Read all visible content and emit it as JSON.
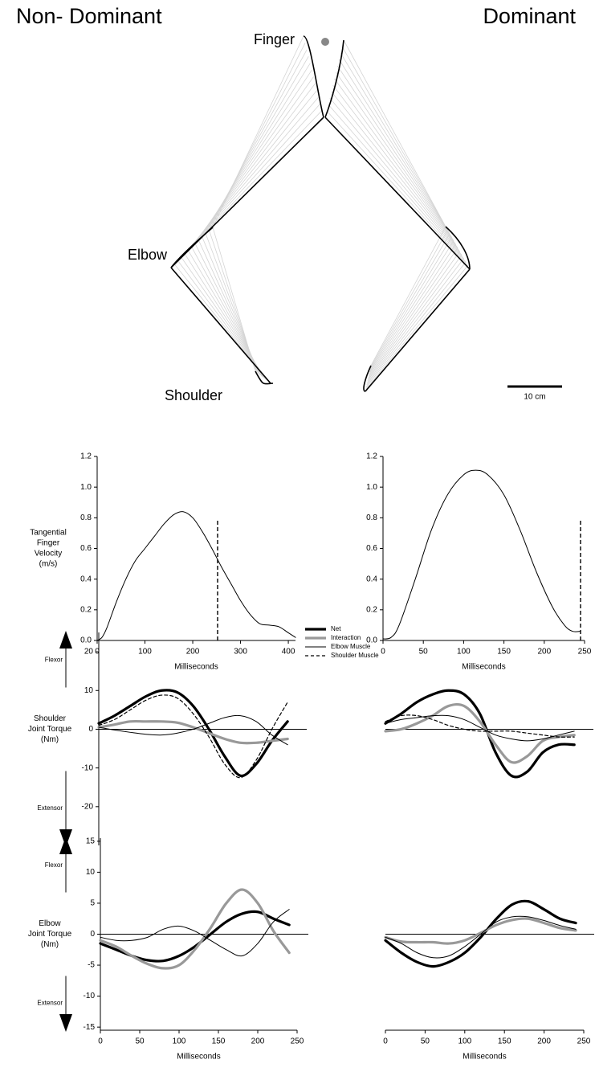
{
  "diagram": {
    "titles": [
      "Non- Dominant",
      "Dominant"
    ],
    "finger": "Finger",
    "elbow": "Elbow",
    "shoulder": "Shoulder",
    "scale_bar": "10 cm"
  },
  "chart_data": [
    {
      "type": "line",
      "ylabel": [
        "Tangential",
        "Finger",
        "Velocity",
        "(m/s)"
      ],
      "xlabel": "Milliseconds",
      "x": [
        0,
        10,
        20,
        40,
        60,
        80,
        100,
        120,
        140,
        160,
        180,
        200,
        220,
        240,
        260,
        280,
        300,
        320,
        340,
        360,
        380,
        400,
        415
      ],
      "series": [
        {
          "color": "#000000",
          "style": "thin",
          "values": [
            0,
            0.02,
            0.08,
            0.25,
            0.4,
            0.52,
            0.6,
            0.68,
            0.76,
            0.82,
            0.84,
            0.8,
            0.71,
            0.6,
            0.48,
            0.37,
            0.26,
            0.17,
            0.11,
            0.1,
            0.09,
            0.05,
            0.02
          ]
        }
      ],
      "xlim": [
        0,
        415
      ],
      "ylim": [
        0,
        1.2
      ],
      "xticks": [
        0,
        100,
        200,
        300,
        400
      ],
      "yticks": [
        {
          "value": 0,
          "label": "0.0"
        },
        0.2,
        0.4,
        0.6,
        0.8,
        {
          "value": 1,
          "label": "1.0"
        },
        1.2
      ],
      "marker_x": 252
    },
    {
      "type": "line",
      "xlabel": "Milliseconds",
      "x": [
        0,
        10,
        20,
        40,
        60,
        80,
        100,
        115,
        130,
        150,
        170,
        190,
        210,
        225,
        235,
        245
      ],
      "series": [
        {
          "color": "#000000",
          "style": "thin",
          "values": [
            0.01,
            0.02,
            0.1,
            0.4,
            0.72,
            0.95,
            1.08,
            1.11,
            1.08,
            0.95,
            0.72,
            0.45,
            0.22,
            0.1,
            0.06,
            0.06
          ]
        }
      ],
      "xlim": [
        0,
        250
      ],
      "ylim": [
        0,
        1.2
      ],
      "xticks": [
        0,
        50,
        100,
        150,
        200,
        250
      ],
      "yticks": [
        {
          "value": 0,
          "label": "0.0"
        },
        0.2,
        0.4,
        0.6,
        0.8,
        {
          "value": 1,
          "label": "1.0"
        },
        1.2
      ],
      "marker_x": 245
    },
    {
      "type": "line",
      "ylabel": [
        "Shoulder",
        "Joint Torque",
        "(Nm)"
      ],
      "annotations": [
        "Flexor",
        "Extensor"
      ],
      "legend": "top-right",
      "x": [
        0,
        20,
        40,
        60,
        80,
        100,
        120,
        140,
        160,
        180,
        200,
        220,
        240
      ],
      "series": [
        {
          "name": "Net",
          "color": "#000000",
          "style": "thick",
          "values": [
            1.5,
            3.5,
            6,
            8.5,
            10,
            9.5,
            6,
            0,
            -7,
            -12,
            -9,
            -3,
            2
          ]
        },
        {
          "name": "Interaction",
          "color": "#999999",
          "style": "thick",
          "values": [
            0.5,
            1.2,
            2,
            2,
            2,
            1.7,
            0.5,
            -1,
            -2.5,
            -3.5,
            -3.5,
            -3,
            -2.5
          ]
        },
        {
          "name": "Elbow Muscle",
          "color": "#000000",
          "style": "thin",
          "values": [
            0.5,
            -0.2,
            -0.8,
            -1.3,
            -1.5,
            -1,
            0,
            1.5,
            3,
            3.5,
            2,
            -1.5,
            -4
          ]
        },
        {
          "name": "Shoulder Muscle",
          "color": "#000000",
          "style": "dashed",
          "values": [
            1,
            2.5,
            5,
            7.5,
            8.8,
            8,
            4,
            -2,
            -9,
            -12.5,
            -8,
            0,
            7
          ]
        }
      ],
      "xlim": [
        0,
        250
      ],
      "ylim": [
        -30,
        25
      ],
      "yticks": [
        -20,
        -10,
        0,
        10,
        20
      ]
    },
    {
      "type": "line",
      "x": [
        0,
        20,
        40,
        60,
        80,
        100,
        120,
        140,
        160,
        180,
        200,
        220,
        240
      ],
      "series": [
        {
          "name": "Net",
          "color": "#000000",
          "style": "thick",
          "values": [
            1.5,
            4,
            7,
            9,
            10,
            9,
            4,
            -6,
            -12,
            -11,
            -6,
            -4,
            -4
          ]
        },
        {
          "name": "Interaction",
          "color": "#999999",
          "style": "thick",
          "values": [
            -0.5,
            0,
            1.5,
            3.5,
            6,
            6,
            2,
            -4,
            -8.5,
            -7,
            -3,
            -2,
            -1.5
          ]
        },
        {
          "name": "Elbow Muscle",
          "color": "#000000",
          "style": "thin",
          "values": [
            1.5,
            2.5,
            3,
            3.5,
            3.5,
            2.5,
            0.5,
            -1.5,
            -2.5,
            -3,
            -2.5,
            -1.5,
            -0.5
          ]
        },
        {
          "name": "Shoulder Muscle",
          "color": "#000000",
          "style": "dashed",
          "values": [
            2,
            3.5,
            3.5,
            2.5,
            1,
            0,
            -0.5,
            -0.5,
            -0.5,
            -1,
            -1.5,
            -2,
            -2
          ]
        }
      ],
      "xlim": [
        0,
        250
      ],
      "ylim": [
        -30,
        25
      ]
    },
    {
      "type": "line",
      "ylabel": [
        "Elbow",
        "Joint Torque",
        "(Nm)"
      ],
      "annotations": [
        "Flexor",
        "Extensor"
      ],
      "xlabel": "Milliseconds",
      "x": [
        0,
        20,
        40,
        60,
        80,
        100,
        120,
        140,
        160,
        180,
        200,
        220,
        240
      ],
      "series": [
        {
          "name": "Net",
          "color": "#000000",
          "style": "thick",
          "values": [
            -1.5,
            -2.5,
            -3.5,
            -4.2,
            -4.3,
            -3.5,
            -2,
            0,
            2,
            3.3,
            3.6,
            2.5,
            1.5
          ]
        },
        {
          "name": "Interaction",
          "color": "#999999",
          "style": "thick",
          "values": [
            -1,
            -2,
            -3.5,
            -4.8,
            -5.5,
            -5,
            -2.5,
            1,
            5,
            7.2,
            5,
            0.5,
            -3
          ]
        },
        {
          "name": "Elbow Muscle",
          "color": "#000000",
          "style": "thin",
          "values": [
            -0.5,
            -1,
            -1,
            -0.5,
            0.8,
            1.3,
            0.5,
            -1,
            -2.5,
            -3.5,
            -1.5,
            2,
            4
          ]
        }
      ],
      "xlim": [
        0,
        250
      ],
      "ylim": [
        -15.5,
        15.5
      ],
      "xticks": [
        0,
        50,
        100,
        150,
        200,
        250
      ],
      "yticks": [
        -15,
        -10,
        -5,
        0,
        5,
        10,
        15
      ]
    },
    {
      "type": "line",
      "xlabel": "Milliseconds",
      "x": [
        0,
        20,
        40,
        60,
        80,
        100,
        120,
        140,
        160,
        180,
        200,
        220,
        240
      ],
      "series": [
        {
          "name": "Net",
          "color": "#000000",
          "style": "thick",
          "values": [
            -1,
            -3,
            -4.5,
            -5.2,
            -4.5,
            -3,
            -0.5,
            2.5,
            4.8,
            5.3,
            4,
            2.5,
            1.8
          ]
        },
        {
          "name": "Interaction",
          "color": "#999999",
          "style": "thick",
          "values": [
            -0.5,
            -1.2,
            -1.3,
            -1.3,
            -1.5,
            -1,
            0.2,
            1.5,
            2.3,
            2.5,
            1.8,
            1,
            0.6
          ]
        },
        {
          "name": "Elbow Muscle",
          "color": "#000000",
          "style": "thin",
          "values": [
            -0.5,
            -1.5,
            -3,
            -3.8,
            -3.5,
            -2,
            0,
            2,
            2.8,
            2.8,
            2.2,
            1.4,
            0.8
          ]
        }
      ],
      "xlim": [
        0,
        250
      ],
      "ylim": [
        -15.5,
        15.5
      ],
      "xticks": [
        0,
        50,
        100,
        150,
        200,
        250
      ]
    }
  ]
}
